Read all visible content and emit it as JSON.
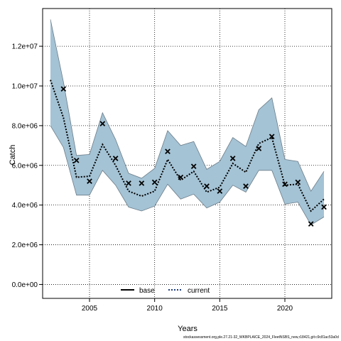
{
  "chart_data": {
    "type": "line",
    "xlabel": "Years",
    "ylabel": "Catch",
    "xlim": [
      2001.4,
      2023.6
    ],
    "ylim": [
      -700000,
      13900000
    ],
    "x_ticks": [
      2005,
      2010,
      2015,
      2020
    ],
    "x_tick_labels": [
      "2005",
      "2010",
      "2015",
      "2020"
    ],
    "y_ticks": [
      0,
      2000000,
      4000000,
      6000000,
      8000000,
      10000000,
      12000000
    ],
    "y_tick_labels": [
      "0.0e+00",
      "2.0e+06",
      "4.0e+06",
      "6.0e+06",
      "8.0e+06",
      "1.0e+07",
      "1.2e+07"
    ],
    "grid": true,
    "legend_position": "bottom-center",
    "legend": [
      {
        "name": "base",
        "style": "solid",
        "color": "#000000"
      },
      {
        "name": "current",
        "style": "dotted",
        "color": "#1f3b7a"
      }
    ],
    "band_color": "#a4c3d5",
    "x": [
      2002,
      2003,
      2004,
      2005,
      2006,
      2007,
      2008,
      2009,
      2010,
      2011,
      2012,
      2013,
      2014,
      2015,
      2016,
      2017,
      2018,
      2019,
      2020,
      2021,
      2022,
      2023
    ],
    "series": [
      {
        "name": "current",
        "role": "line",
        "values": [
          10300000,
          8400000,
          5400000,
          5450000,
          7050000,
          6000000,
          4700000,
          4450000,
          4700000,
          6300000,
          5250000,
          5700000,
          4650000,
          4900000,
          6100000,
          5650000,
          7100000,
          7400000,
          5000000,
          5050000,
          3700000,
          4300000
        ]
      },
      {
        "role": "band_upper",
        "values": [
          13350000,
          10200000,
          6500000,
          6550000,
          8650000,
          7300000,
          5600000,
          5350000,
          5850000,
          7750000,
          7000000,
          7200000,
          5800000,
          6200000,
          7400000,
          6950000,
          8800000,
          9400000,
          6300000,
          6200000,
          4700000,
          5700000
        ]
      },
      {
        "role": "band_lower",
        "values": [
          8000000,
          6900000,
          4500000,
          4500000,
          5750000,
          5000000,
          3900000,
          3700000,
          3950000,
          5050000,
          4300000,
          4550000,
          3850000,
          4150000,
          5000000,
          4650000,
          5750000,
          5750000,
          4050000,
          4150000,
          3000000,
          3400000
        ]
      },
      {
        "role": "observed",
        "values": [
          null,
          9850000,
          6250000,
          5200000,
          8100000,
          6350000,
          5100000,
          5100000,
          5150000,
          6700000,
          5400000,
          5950000,
          4950000,
          4700000,
          6350000,
          4950000,
          6850000,
          7450000,
          5050000,
          5150000,
          3050000,
          3900000
        ]
      }
    ]
  },
  "footer": "stockassessment.org,ple.27.21-32_WKBPLAICE_2024_FleetNSBS_new,r18421,git:c9c81ac53a0d"
}
